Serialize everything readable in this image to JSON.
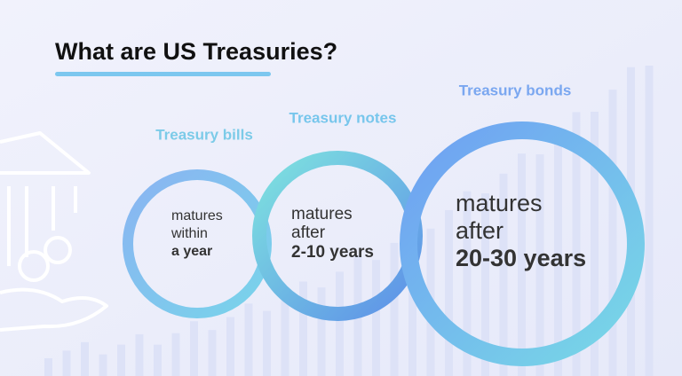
{
  "title": "What are US Treasuries?",
  "items": [
    {
      "label": "Treasury bills",
      "lines": [
        "matures",
        "within"
      ],
      "bold": "a year"
    },
    {
      "label": "Treasury notes",
      "lines": [
        "matures",
        "after"
      ],
      "bold": "2-10 years"
    },
    {
      "label": "Treasury bonds",
      "lines": [
        "matures",
        "after"
      ],
      "bold": "20-30 years"
    }
  ]
}
